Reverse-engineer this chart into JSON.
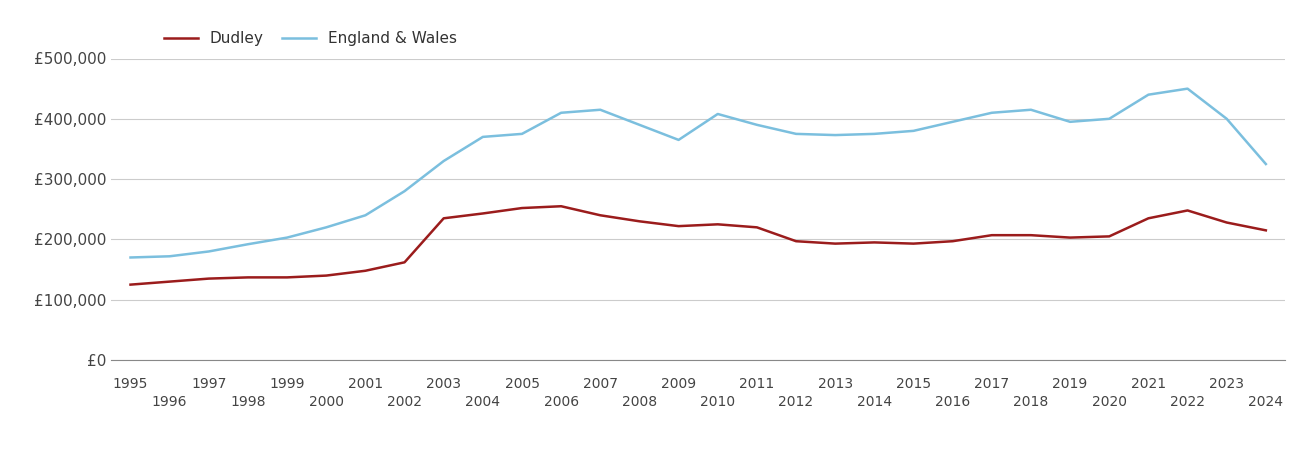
{
  "years": [
    1995,
    1996,
    1997,
    1998,
    1999,
    2000,
    2001,
    2002,
    2003,
    2004,
    2005,
    2006,
    2007,
    2008,
    2009,
    2010,
    2011,
    2012,
    2013,
    2014,
    2015,
    2016,
    2017,
    2018,
    2019,
    2020,
    2021,
    2022,
    2023,
    2024
  ],
  "dudley": [
    125000,
    130000,
    135000,
    137000,
    137000,
    140000,
    148000,
    162000,
    235000,
    243000,
    252000,
    255000,
    240000,
    230000,
    222000,
    225000,
    220000,
    197000,
    193000,
    195000,
    193000,
    197000,
    207000,
    207000,
    203000,
    205000,
    235000,
    248000,
    228000,
    215000
  ],
  "england_wales": [
    170000,
    172000,
    180000,
    192000,
    203000,
    220000,
    240000,
    280000,
    330000,
    370000,
    375000,
    410000,
    415000,
    390000,
    365000,
    408000,
    390000,
    375000,
    373000,
    375000,
    380000,
    395000,
    410000,
    415000,
    395000,
    400000,
    440000,
    450000,
    400000,
    325000
  ],
  "dudley_color": "#9B1C1C",
  "ew_color": "#7BBFDE",
  "ylim": [
    0,
    500000
  ],
  "yticks": [
    0,
    100000,
    200000,
    300000,
    400000,
    500000
  ],
  "ytick_labels": [
    "£0",
    "£100,000",
    "£200,000",
    "£300,000",
    "£400,000",
    "£500,000"
  ],
  "background_color": "#ffffff",
  "grid_color": "#cccccc",
  "legend_dudley": "Dudley",
  "legend_ew": "England & Wales"
}
